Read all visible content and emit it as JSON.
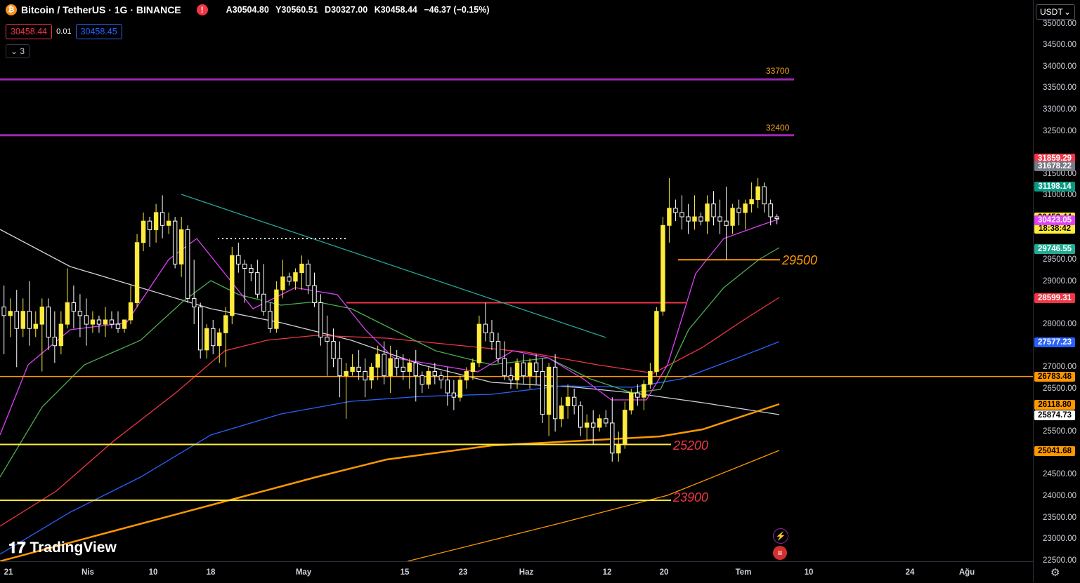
{
  "header": {
    "symbol": "Bitcoin / TetherUS · 1G · BINANCE",
    "open": "A30504.80",
    "high": "Y30560.51",
    "low": "D30327.00",
    "close": "K30458.44",
    "change": "−46.37 (−0.15%)"
  },
  "trade": {
    "sell": "30458.44",
    "spread": "0.01",
    "buy": "30458.45"
  },
  "indicators_toggle": "3",
  "currency_selector": "USDT",
  "y_axis_ticks": [
    "35000.00",
    "34500.00",
    "34000.00",
    "33500.00",
    "33000.00",
    "32500.00",
    "31500.00",
    "31000.00",
    "29500.00",
    "29000.00",
    "28000.00",
    "27000.00",
    "26500.00",
    "25500.00",
    "24500.00",
    "24000.00",
    "23500.00",
    "23000.00",
    "22500.00"
  ],
  "price_tags": [
    {
      "value": "31859.29",
      "bg": "#f23645",
      "fg": "#ffffff"
    },
    {
      "value": "31678.22",
      "bg": "#787b86",
      "fg": "#ffffff"
    },
    {
      "value": "31198.14",
      "bg": "#089981",
      "fg": "#ffffff"
    },
    {
      "value": "30458.44",
      "bg": "#ffeb3b",
      "fg": "#000000"
    },
    {
      "value": "18:38:42",
      "bg": "#ffeb3b",
      "fg": "#000000"
    },
    {
      "value": "30423.05",
      "bg": "#e040fb",
      "fg": "#ffffff"
    },
    {
      "value": "29746.55",
      "bg": "#22ab94",
      "fg": "#ffffff"
    },
    {
      "value": "28599.31",
      "bg": "#f23645",
      "fg": "#ffffff"
    },
    {
      "value": "27577.23",
      "bg": "#2962ff",
      "fg": "#ffffff"
    },
    {
      "value": "26783.48",
      "bg": "#ff9800",
      "fg": "#000000"
    },
    {
      "value": "26118.80",
      "bg": "#ff9800",
      "fg": "#000000"
    },
    {
      "value": "25874.73",
      "bg": "#ffffff",
      "fg": "#000000"
    },
    {
      "value": "25041.68",
      "bg": "#ff9800",
      "fg": "#000000"
    }
  ],
  "x_axis_ticks": [
    "21",
    "Nis",
    "10",
    "18",
    "May",
    "15",
    "23",
    "Haz",
    "12",
    "20",
    "Tem",
    "10",
    "24",
    "Ağu"
  ],
  "level_labels": {
    "l33700": "33700",
    "l32400": "32400",
    "l29500": "29500",
    "l25200": "25200",
    "l23900": "23900"
  },
  "brand": "TradingView",
  "colors": {
    "candle_up": "#ffeb3b",
    "candle_down": "#ffffff",
    "purple_line": "#9c27b0",
    "orange_line": "#ff9800",
    "yellow_line": "#ffeb3b",
    "red_line": "#f23645",
    "ma_magenta": "#e040fb",
    "ma_green": "#4caf50",
    "ma_red": "#f23645",
    "ma_blue": "#2962ff",
    "ma_orange": "#ff9800",
    "ma_white": "#d1d4dc",
    "trend_teal": "#26a69a"
  },
  "chart_data": {
    "type": "candlestick",
    "symbol": "BTCUSDT",
    "interval": "1D",
    "ylim": [
      22300,
      35500
    ],
    "candles": [
      [
        28400,
        28900,
        27300,
        28200
      ],
      [
        28200,
        28600,
        27700,
        28300
      ],
      [
        28300,
        28800,
        27000,
        27900
      ],
      [
        27900,
        28600,
        27700,
        28300
      ],
      [
        28300,
        29000,
        27500,
        27900
      ],
      [
        27900,
        28300,
        27700,
        28000
      ],
      [
        28000,
        28600,
        26900,
        28400
      ],
      [
        28400,
        28600,
        27400,
        27700
      ],
      [
        27700,
        28300,
        27100,
        27500
      ],
      [
        27500,
        28300,
        27300,
        28000
      ],
      [
        28000,
        29300,
        27900,
        28500
      ],
      [
        28500,
        28900,
        27900,
        28300
      ],
      [
        28300,
        28700,
        27700,
        28200
      ],
      [
        28200,
        28600,
        27500,
        28000
      ],
      [
        28000,
        28300,
        27800,
        28100
      ],
      [
        28100,
        28200,
        27800,
        28000
      ],
      [
        28000,
        28400,
        27700,
        28100
      ],
      [
        28100,
        28300,
        27900,
        28000
      ],
      [
        28000,
        28300,
        27800,
        27900
      ],
      [
        27900,
        28100,
        27800,
        28100
      ],
      [
        28100,
        28900,
        28000,
        28500
      ],
      [
        28500,
        30100,
        28400,
        29900
      ],
      [
        29900,
        30600,
        29700,
        30400
      ],
      [
        30400,
        30500,
        29800,
        30200
      ],
      [
        30200,
        30800,
        29900,
        30600
      ],
      [
        30600,
        31000,
        30000,
        30300
      ],
      [
        30300,
        30600,
        30100,
        30400
      ],
      [
        30400,
        30500,
        29300,
        29400
      ],
      [
        29400,
        30500,
        29100,
        30200
      ],
      [
        30200,
        30300,
        28500,
        28600
      ],
      [
        28600,
        29500,
        28000,
        28400
      ],
      [
        28400,
        28500,
        27200,
        27400
      ],
      [
        27400,
        28000,
        27200,
        27900
      ],
      [
        27900,
        28100,
        27300,
        27500
      ],
      [
        27500,
        27900,
        27100,
        27800
      ],
      [
        27800,
        28400,
        27000,
        28200
      ],
      [
        28200,
        29800,
        28000,
        29600
      ],
      [
        29600,
        29900,
        29200,
        29400
      ],
      [
        29400,
        29500,
        28500,
        29300
      ],
      [
        29300,
        29400,
        29000,
        29200
      ],
      [
        29200,
        29500,
        28600,
        28700
      ],
      [
        28700,
        29400,
        28200,
        28300
      ],
      [
        28300,
        28500,
        27800,
        27900
      ],
      [
        27900,
        29000,
        27800,
        28800
      ],
      [
        28800,
        29500,
        28600,
        29100
      ],
      [
        29100,
        29200,
        28900,
        29000
      ],
      [
        29000,
        29300,
        28800,
        29200
      ],
      [
        29200,
        29600,
        28800,
        29400
      ],
      [
        29400,
        29500,
        28700,
        28900
      ],
      [
        28900,
        29200,
        28400,
        28500
      ],
      [
        28500,
        28700,
        27500,
        27700
      ],
      [
        27700,
        28200,
        26800,
        27600
      ],
      [
        27600,
        27900,
        27000,
        27200
      ],
      [
        27200,
        27600,
        26300,
        26800
      ],
      [
        26800,
        27100,
        25800,
        26900
      ],
      [
        26900,
        27300,
        26800,
        27000
      ],
      [
        27000,
        27400,
        26700,
        26900
      ],
      [
        26900,
        27200,
        26300,
        26700
      ],
      [
        26700,
        27100,
        26500,
        27000
      ],
      [
        27000,
        27500,
        26700,
        27300
      ],
      [
        27300,
        27600,
        26600,
        26800
      ],
      [
        26800,
        27500,
        26400,
        27200
      ],
      [
        27200,
        27400,
        26800,
        27000
      ],
      [
        27000,
        27300,
        26700,
        26900
      ],
      [
        26900,
        27200,
        26500,
        27100
      ],
      [
        27100,
        27400,
        26200,
        26800
      ],
      [
        26800,
        26900,
        26400,
        26600
      ],
      [
        26600,
        27000,
        26500,
        26900
      ],
      [
        26900,
        27100,
        26600,
        26800
      ],
      [
        26800,
        26900,
        26500,
        26700
      ],
      [
        26700,
        27000,
        26100,
        26400
      ],
      [
        26400,
        26700,
        26000,
        26300
      ],
      [
        26300,
        26800,
        26200,
        26700
      ],
      [
        26700,
        27000,
        26500,
        26900
      ],
      [
        26900,
        27200,
        26700,
        27100
      ],
      [
        27100,
        28200,
        27000,
        28000
      ],
      [
        28000,
        28500,
        27600,
        27800
      ],
      [
        27800,
        28100,
        27400,
        27600
      ],
      [
        27600,
        27800,
        27100,
        27200
      ],
      [
        27200,
        27600,
        26700,
        26800
      ],
      [
        26800,
        27000,
        26500,
        26700
      ],
      [
        26700,
        27200,
        26500,
        27100
      ],
      [
        27100,
        27300,
        26600,
        26800
      ],
      [
        26800,
        27200,
        26500,
        27100
      ],
      [
        27100,
        27300,
        26600,
        26900
      ],
      [
        26900,
        27200,
        25700,
        25900
      ],
      [
        25900,
        27100,
        25400,
        27000
      ],
      [
        27000,
        27300,
        25500,
        25800
      ],
      [
        25800,
        26300,
        25600,
        26100
      ],
      [
        26100,
        26600,
        25800,
        26300
      ],
      [
        26300,
        26500,
        25900,
        26100
      ],
      [
        26100,
        26200,
        25400,
        25600
      ],
      [
        25600,
        25900,
        25300,
        25700
      ],
      [
        25700,
        26000,
        25200,
        25600
      ],
      [
        25600,
        25900,
        25500,
        25800
      ],
      [
        25800,
        26000,
        25600,
        25700
      ],
      [
        25700,
        26300,
        24800,
        25000
      ],
      [
        25000,
        25500,
        24800,
        25200
      ],
      [
        25200,
        26200,
        25100,
        26000
      ],
      [
        26000,
        26500,
        25900,
        26400
      ],
      [
        26400,
        26600,
        26100,
        26300
      ],
      [
        26300,
        26700,
        26000,
        26600
      ],
      [
        26600,
        27100,
        26500,
        26900
      ],
      [
        26900,
        28400,
        26800,
        28300
      ],
      [
        28300,
        30500,
        28200,
        30300
      ],
      [
        30300,
        31400,
        29900,
        30700
      ],
      [
        30700,
        30900,
        30400,
        30600
      ],
      [
        30600,
        31000,
        30200,
        30500
      ],
      [
        30500,
        30800,
        30100,
        30400
      ],
      [
        30400,
        31000,
        30200,
        30500
      ],
      [
        30500,
        30600,
        30300,
        30400
      ],
      [
        30400,
        31000,
        30100,
        30800
      ],
      [
        30800,
        31100,
        30300,
        30500
      ],
      [
        30500,
        30900,
        30100,
        30400
      ],
      [
        30400,
        31200,
        29500,
        30300
      ],
      [
        30300,
        30800,
        30100,
        30700
      ],
      [
        30700,
        30900,
        30300,
        30600
      ],
      [
        30600,
        30900,
        30200,
        30800
      ],
      [
        30800,
        31300,
        30600,
        30900
      ],
      [
        30900,
        31400,
        30700,
        31200
      ],
      [
        31200,
        31300,
        30600,
        30800
      ],
      [
        30800,
        30900,
        30300,
        30500
      ],
      [
        30500,
        30560,
        30327,
        30458
      ]
    ],
    "horizontal_levels": [
      33700,
      32400,
      29500,
      28500,
      26783.48,
      25200,
      23900
    ],
    "moving_averages": [
      "MA10",
      "MA20",
      "MA50",
      "MA100",
      "MA200",
      "MA200W"
    ]
  }
}
